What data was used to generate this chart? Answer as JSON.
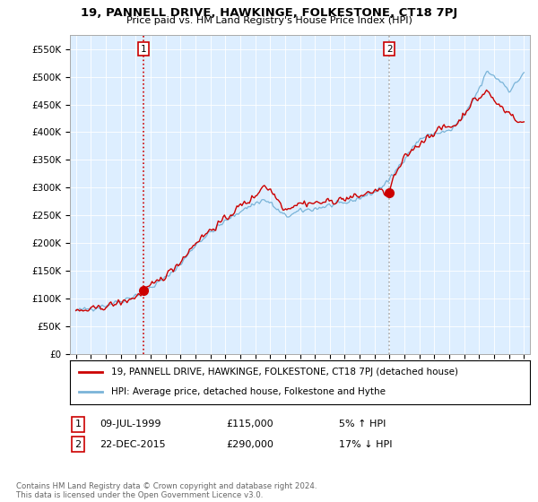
{
  "title": "19, PANNELL DRIVE, HAWKINGE, FOLKESTONE, CT18 7PJ",
  "subtitle": "Price paid vs. HM Land Registry's House Price Index (HPI)",
  "ylabel_ticks": [
    "£0",
    "£50K",
    "£100K",
    "£150K",
    "£200K",
    "£250K",
    "£300K",
    "£350K",
    "£400K",
    "£450K",
    "£500K",
    "£550K"
  ],
  "ytick_values": [
    0,
    50000,
    100000,
    150000,
    200000,
    250000,
    300000,
    350000,
    400000,
    450000,
    500000,
    550000
  ],
  "ylim": [
    0,
    575000
  ],
  "xlim_left": 1994.6,
  "xlim_right": 2025.4,
  "sale1": {
    "date_num": 1999.52,
    "price": 115000,
    "label": "1",
    "date_str": "09-JUL-1999",
    "price_str": "£115,000",
    "pct": "5% ↑ HPI"
  },
  "sale2": {
    "date_num": 2015.98,
    "price": 290000,
    "label": "2",
    "date_str": "22-DEC-2015",
    "price_str": "£290,000",
    "pct": "17% ↓ HPI"
  },
  "legend_line1": "19, PANNELL DRIVE, HAWKINGE, FOLKESTONE, CT18 7PJ (detached house)",
  "legend_line2": "HPI: Average price, detached house, Folkestone and Hythe",
  "footer": "Contains HM Land Registry data © Crown copyright and database right 2024.\nThis data is licensed under the Open Government Licence v3.0.",
  "hpi_color": "#7ab4d8",
  "price_color": "#cc0000",
  "marker_color": "#cc0000",
  "sale1_vline_color": "#cc0000",
  "sale2_vline_color": "#aaaaaa",
  "chart_bg": "#ddeeff",
  "background_color": "#ffffff",
  "grid_color": "#ffffff"
}
